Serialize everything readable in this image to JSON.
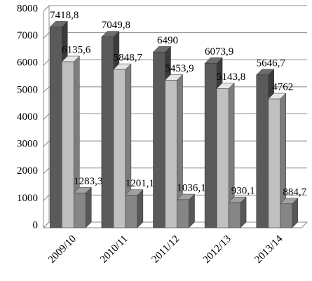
{
  "chart_data": {
    "type": "bar3d",
    "categories": [
      "2009/10",
      "2010/11",
      "2011/12",
      "2012/13",
      "2013/14"
    ],
    "series": [
      {
        "color": "#5a5a5a",
        "values": [
          7418.8,
          7049.8,
          6490,
          6073.9,
          5646.7
        ],
        "value_labels": [
          "7418,8",
          "7049,8",
          "6490",
          "6073,9",
          "5646,7"
        ]
      },
      {
        "color": "#c0c0c0",
        "values": [
          6135.6,
          5848.7,
          5453.9,
          5143.8,
          4762
        ],
        "value_labels": [
          "6135,6",
          "5848,7",
          "5453,9",
          "5143,8",
          "4762"
        ]
      },
      {
        "color": "#868686",
        "values": [
          1283.3,
          1201.1,
          1036.1,
          930.1,
          884.7
        ],
        "value_labels": [
          "1283,3",
          "1201,1",
          "1036,1",
          "930,1",
          "884,7"
        ]
      }
    ],
    "ylim": [
      0,
      8000
    ],
    "yticks": [
      0,
      1000,
      2000,
      3000,
      4000,
      5000,
      6000,
      7000,
      8000
    ],
    "grid": true
  }
}
